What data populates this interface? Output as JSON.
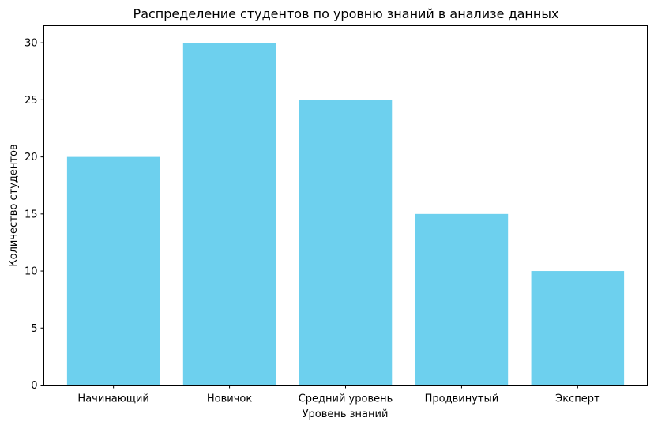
{
  "chart_data": {
    "type": "bar",
    "title": "Распределение студентов по уровню знаний в анализе данных",
    "xlabel": "Уровень знаний",
    "ylabel": "Количество студентов",
    "categories": [
      "Начинающий",
      "Новичок",
      "Средний уровень",
      "Продвинутый",
      "Эксперт"
    ],
    "values": [
      20,
      30,
      25,
      15,
      10
    ],
    "ylim": [
      0,
      31.5
    ],
    "yticks": [
      0,
      5,
      10,
      15,
      20,
      25,
      30
    ],
    "ytick_labels": [
      "0",
      "5",
      "10",
      "15",
      "20",
      "25",
      "30"
    ],
    "bar_color": "#6dd0ee",
    "grid": false,
    "legend": "none"
  }
}
